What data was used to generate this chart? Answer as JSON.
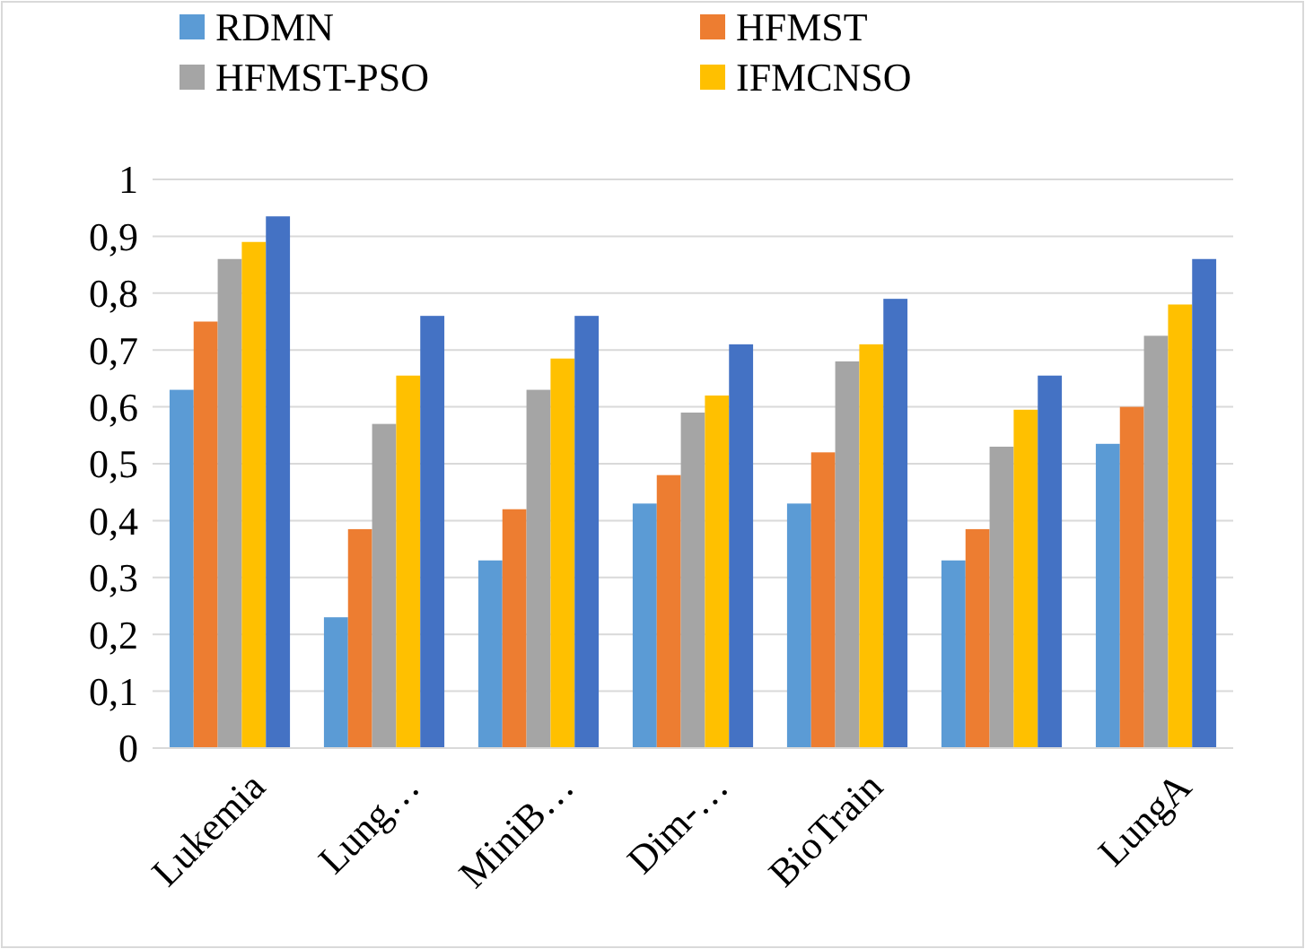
{
  "chart_data": {
    "type": "bar",
    "categories": [
      "Lukemia",
      "Lung…",
      "MiniB…",
      "Dim-…",
      "BioTrain",
      null,
      "LungA"
    ],
    "series": [
      {
        "name": "RDMN",
        "color": "#5b9bd5",
        "values": [
          0.63,
          0.23,
          0.33,
          0.43,
          0.43,
          0.33,
          0.535
        ]
      },
      {
        "name": "HFMST",
        "color": "#ed7d31",
        "values": [
          0.75,
          0.385,
          0.42,
          0.48,
          0.52,
          0.385,
          0.6
        ]
      },
      {
        "name": "HFMST-PSO",
        "color": "#a5a5a5",
        "values": [
          0.86,
          0.57,
          0.63,
          0.59,
          0.68,
          0.53,
          0.725
        ]
      },
      {
        "name": "IFMCNSO",
        "color": "#ffc000",
        "values": [
          0.89,
          0.655,
          0.685,
          0.62,
          0.71,
          0.595,
          0.78
        ]
      },
      {
        "color": "#4472c4",
        "values": [
          0.935,
          0.76,
          0.76,
          0.71,
          0.79,
          0.655,
          0.86
        ]
      }
    ],
    "ylim": [
      0,
      1
    ],
    "yticks": [
      0,
      {
        "value": 0.1,
        "label": "0,1"
      },
      {
        "value": 0.2,
        "label": "0,2"
      },
      {
        "value": 0.3,
        "label": "0,3"
      },
      {
        "value": 0.4,
        "label": "0,4"
      },
      {
        "value": 0.5,
        "label": "0,5"
      },
      {
        "value": 0.6,
        "label": "0,6"
      },
      {
        "value": 0.7,
        "label": "0,7"
      },
      {
        "value": 0.8,
        "label": "0,8"
      },
      {
        "value": 0.9,
        "label": "0,9"
      },
      1
    ],
    "grid": "y",
    "legend": "top"
  }
}
